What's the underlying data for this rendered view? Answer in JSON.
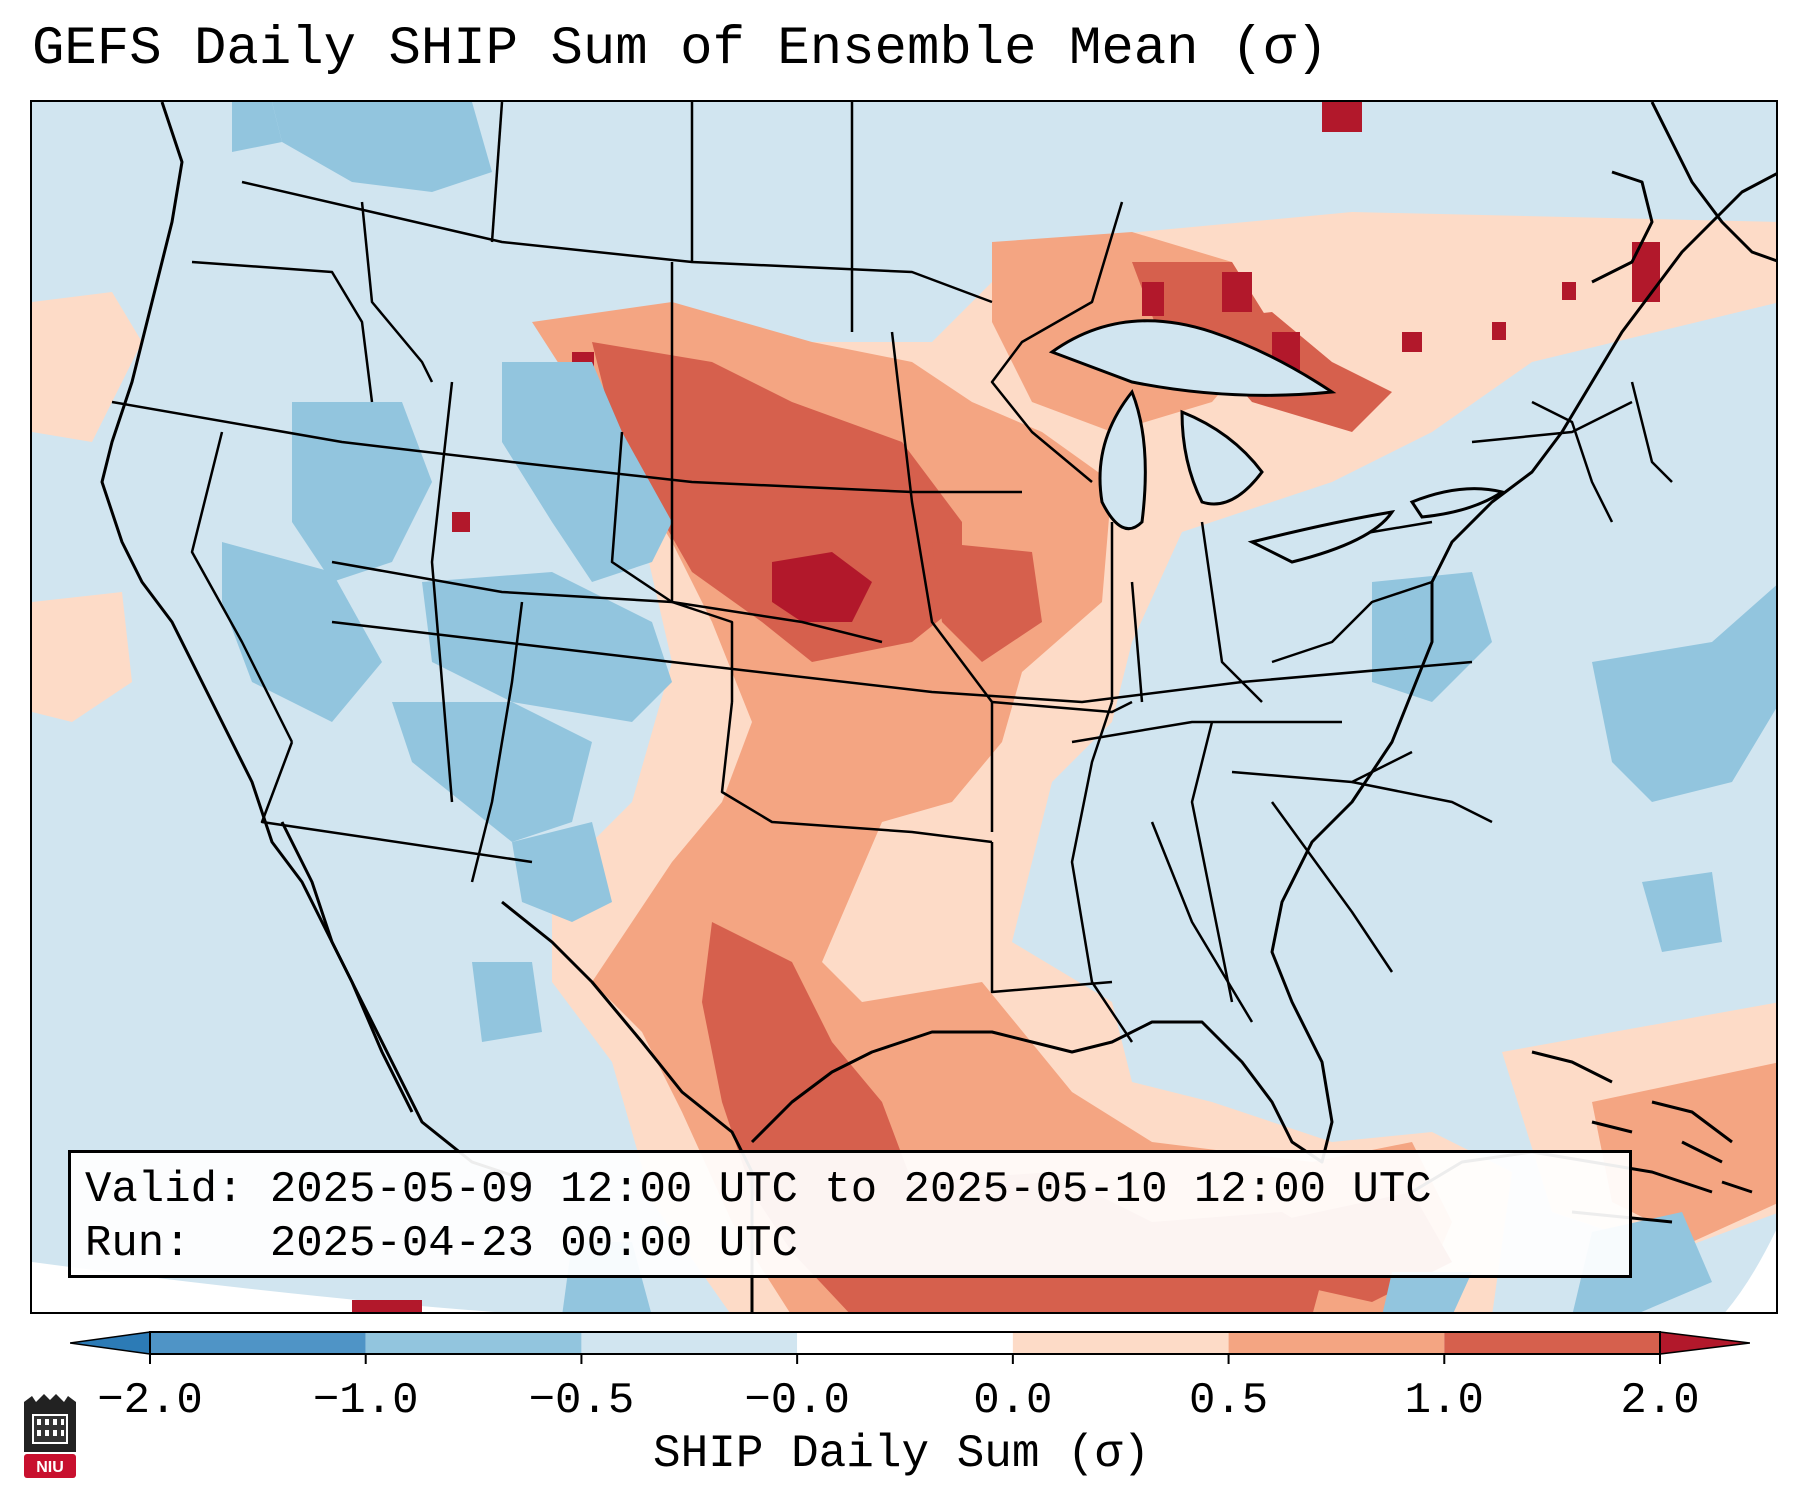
{
  "title": "GEFS Daily SHIP Sum of Ensemble Mean (σ)",
  "info": {
    "valid_label": "Valid:",
    "valid_value": "2025-05-09 12:00 UTC to 2025-05-10 12:00 UTC",
    "run_label": "Run:",
    "run_value": "2025-04-23 00:00 UTC"
  },
  "colorbar": {
    "label": "SHIP Daily Sum (σ)",
    "ticks": [
      "−2.0",
      "−1.0",
      "−0.5",
      "−0.0",
      "0.0",
      "0.5",
      "1.0",
      "2.0"
    ],
    "colors": [
      "#2c7bb6",
      "#4f94c6",
      "#92c5de",
      "#d1e5f0",
      "#ffffff",
      "#fddbc7",
      "#f4a582",
      "#d6604d",
      "#b2182b"
    ]
  },
  "logo": {
    "text": "NIU"
  },
  "colors": {
    "ocean_neutral": "#d1e5f0",
    "light_blue": "#92c5de",
    "light_red": "#fddbc7",
    "medium_red": "#f4a582",
    "red": "#d6604d",
    "dark_red": "#b2182b",
    "niu_red": "#c8102e"
  }
}
